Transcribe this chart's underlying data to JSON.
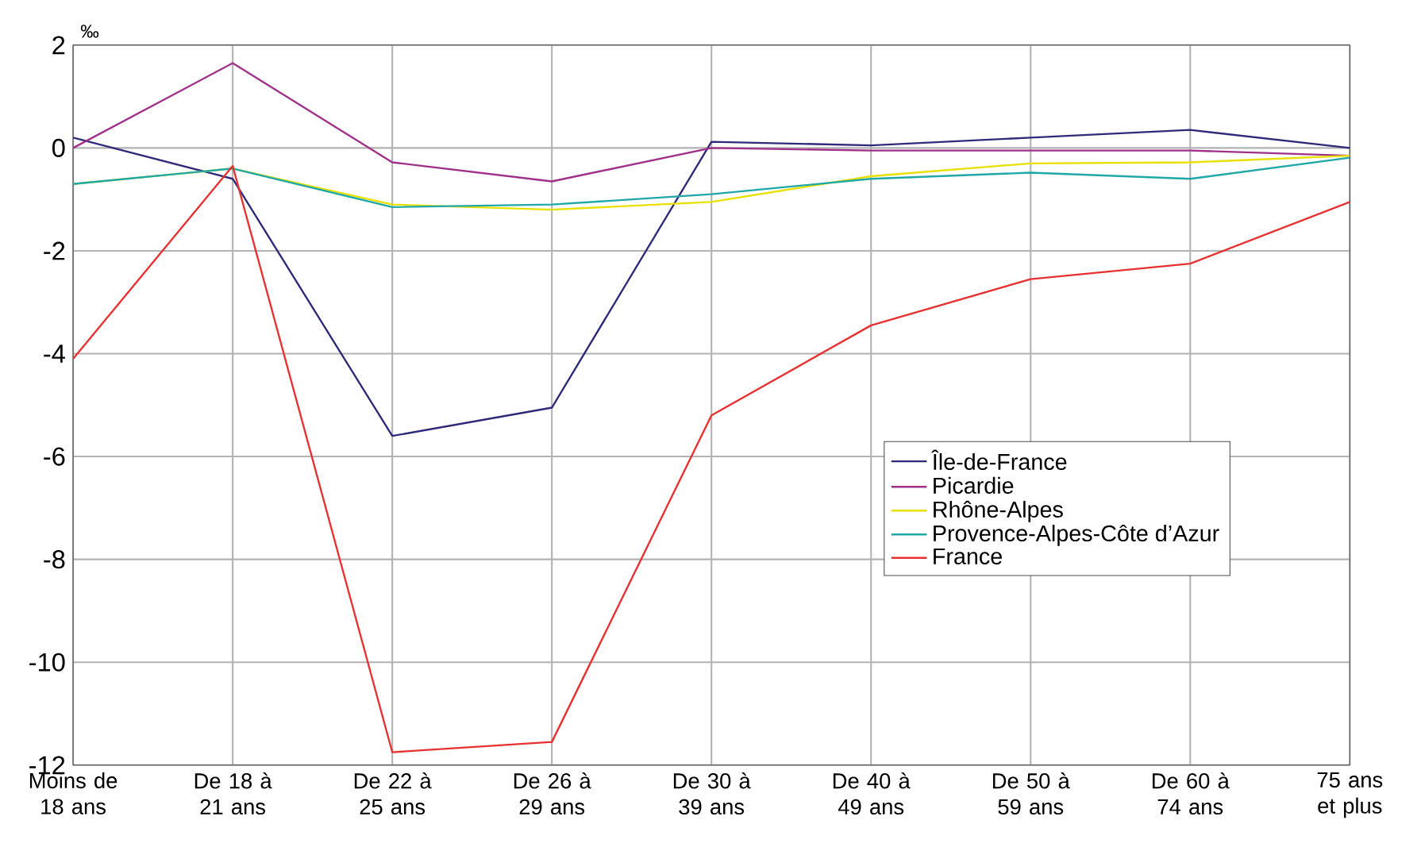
{
  "chart_data": {
    "type": "line",
    "ylabel": "‰",
    "categories": [
      "Moins de 18 ans",
      "De 18 à 21 ans",
      "De 22 à 25 ans",
      "De 26 à 29 ans",
      "De 30 à 39 ans",
      "De 40 à 49 ans",
      "De 50 à 59 ans",
      "De 60 à 74 ans",
      "75 ans et plus"
    ],
    "series": [
      {
        "name": "Île-de-France",
        "color": "#2e2a7a",
        "values": [
          0.2,
          -0.6,
          -5.6,
          -5.05,
          0.12,
          0.05,
          0.2,
          0.35,
          0
        ]
      },
      {
        "name": "Picardie",
        "color": "#a0308a",
        "values": [
          0,
          1.65,
          -0.28,
          -0.65,
          0,
          -0.05,
          -0.05,
          -0.05,
          -0.15
        ]
      },
      {
        "name": "Rhône-Alpes",
        "color": "#e8e000",
        "values": [
          -0.7,
          -0.4,
          -1.1,
          -1.2,
          -1.05,
          -0.55,
          -0.3,
          -0.28,
          -0.15
        ]
      },
      {
        "name": "Provence-Alpes-Côte d’Azur",
        "color": "#20a8a8",
        "values": [
          -0.7,
          -0.4,
          -1.15,
          -1.1,
          -0.9,
          -0.6,
          -0.48,
          -0.6,
          -0.19
        ]
      },
      {
        "name": "France",
        "color": "#e83030",
        "values": [
          -4.1,
          -0.35,
          -11.75,
          -11.55,
          -5.2,
          -3.45,
          -2.55,
          -2.25,
          -1.05
        ]
      }
    ],
    "ylim": [
      -12,
      2
    ],
    "yticks": [
      -12,
      -10,
      -8,
      -6,
      -4,
      -2,
      0,
      2
    ],
    "grid": true,
    "legend": "right",
    "marker": "none",
    "line_style": "solid"
  }
}
